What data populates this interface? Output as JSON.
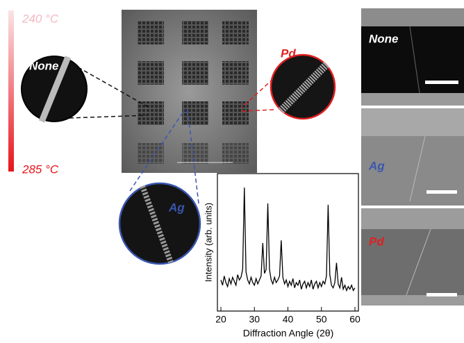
{
  "temperature_scale": {
    "top_label": "240 °C",
    "bottom_label": "285 °C"
  },
  "insets": [
    {
      "label": "None"
    },
    {
      "label": "Pd"
    },
    {
      "label": "Ag"
    }
  ],
  "sem_panels": [
    {
      "label": "None"
    },
    {
      "label": "Ag"
    },
    {
      "label": "Pd"
    }
  ],
  "chart_data": {
    "type": "line",
    "x_label": "Diffraction Angle (2θ)",
    "y_label": "Intensity (arb. units)",
    "x": [
      20,
      20.5,
      21,
      21.5,
      22,
      22.5,
      23,
      23.5,
      24,
      24.5,
      25,
      25.5,
      26,
      26.5,
      27,
      27.5,
      28,
      28.5,
      29,
      29.5,
      30,
      30.5,
      31,
      31.5,
      32,
      32.5,
      33,
      33.5,
      34,
      34.5,
      35,
      35.5,
      36,
      36.5,
      37,
      37.5,
      38,
      38.5,
      39,
      39.5,
      40,
      40.5,
      41,
      41.5,
      42,
      42.5,
      43,
      43.5,
      44,
      44.5,
      45,
      45.5,
      46,
      46.5,
      47,
      47.5,
      48,
      48.5,
      49,
      49.5,
      50,
      50.5,
      51,
      51.5,
      52,
      52.5,
      53,
      53.5,
      54,
      54.5,
      55,
      55.5,
      56,
      56.5,
      57,
      57.5,
      58,
      58.5,
      59,
      59.5,
      60
    ],
    "values": [
      22,
      18,
      25,
      20,
      17,
      23,
      19,
      24,
      21,
      18,
      26,
      22,
      24,
      30,
      92,
      28,
      22,
      19,
      24,
      20,
      18,
      23,
      19,
      22,
      25,
      50,
      27,
      30,
      80,
      30,
      22,
      19,
      24,
      20,
      22,
      25,
      52,
      24,
      19,
      22,
      17,
      21,
      18,
      23,
      16,
      20,
      18,
      22,
      15,
      19,
      21,
      16,
      20,
      17,
      22,
      15,
      19,
      21,
      16,
      20,
      17,
      21,
      19,
      25,
      79,
      26,
      18,
      16,
      20,
      35,
      19,
      16,
      24,
      15,
      18,
      14,
      17,
      15,
      18,
      14,
      16
    ],
    "color": "#000000",
    "xlim": [
      20,
      60
    ],
    "ylim": [
      0,
      100
    ],
    "xticks": [
      20,
      30,
      40,
      50,
      60
    ]
  }
}
